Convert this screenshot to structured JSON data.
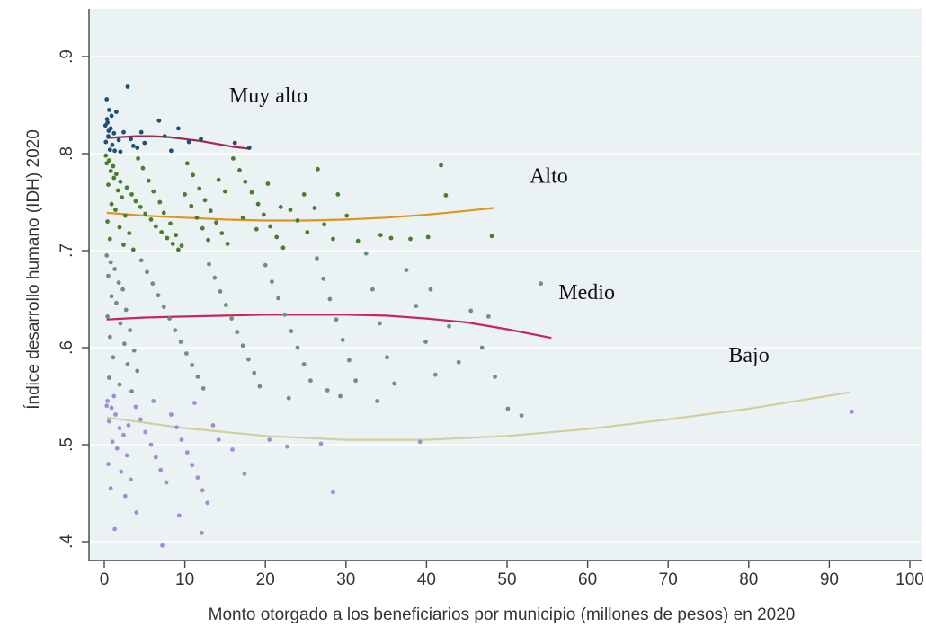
{
  "chart_data": {
    "type": "scatter",
    "title": "",
    "xlabel": "Monto otorgado a los beneficiarios por municipio (millones de pesos) en 2020",
    "ylabel": "Índice desarrollo humano (IDH) 2020",
    "xlim": [
      0,
      100
    ],
    "ylim": [
      0.4,
      0.9
    ],
    "x_ticks": [
      0,
      10,
      20,
      30,
      40,
      50,
      60,
      70,
      80,
      90,
      100
    ],
    "x_tick_labels": [
      "0",
      "10",
      "20",
      "30",
      "40",
      "50",
      "60",
      "70",
      "80",
      "90",
      "100"
    ],
    "y_ticks": [
      0.4,
      0.5,
      0.6,
      0.7,
      0.8,
      0.9
    ],
    "y_tick_labels": [
      ".4",
      ".5",
      ".6",
      ".7",
      ".8",
      ".9"
    ],
    "grid": true,
    "legend": "none",
    "background": "#eaf2f3",
    "groups": [
      {
        "name": "Muy alto",
        "color": "#1f4e79",
        "points": [
          [
            0.3,
            0.856
          ],
          [
            0.6,
            0.845
          ],
          [
            0.9,
            0.839
          ],
          [
            0.4,
            0.832
          ],
          [
            0.8,
            0.826
          ],
          [
            1.2,
            0.821
          ],
          [
            0.5,
            0.818
          ],
          [
            1.5,
            0.843
          ],
          [
            2.9,
            0.869
          ],
          [
            0.2,
            0.812
          ],
          [
            1.0,
            0.809
          ],
          [
            1.8,
            0.814
          ],
          [
            2.4,
            0.822
          ],
          [
            3.3,
            0.815
          ],
          [
            4.1,
            0.806
          ],
          [
            5.0,
            0.811
          ],
          [
            6.8,
            0.834
          ],
          [
            7.5,
            0.818
          ],
          [
            9.2,
            0.826
          ],
          [
            10.5,
            0.812
          ],
          [
            12.0,
            0.815
          ],
          [
            16.2,
            0.811
          ],
          [
            18.0,
            0.806
          ],
          [
            0.7,
            0.804
          ],
          [
            1.3,
            0.803
          ],
          [
            2.0,
            0.802
          ],
          [
            3.6,
            0.808
          ],
          [
            0.35,
            0.8355
          ],
          [
            0.55,
            0.8235
          ],
          [
            0.15,
            0.829
          ],
          [
            4.6,
            0.822
          ],
          [
            8.3,
            0.803
          ]
        ]
      },
      {
        "name": "Alto",
        "color": "#4a7d2c",
        "points": [
          [
            0.3,
            0.79
          ],
          [
            0.8,
            0.782
          ],
          [
            1.2,
            0.775
          ],
          [
            0.5,
            0.768
          ],
          [
            1.7,
            0.762
          ],
          [
            2.2,
            0.755
          ],
          [
            0.9,
            0.748
          ],
          [
            1.4,
            0.742
          ],
          [
            2.6,
            0.736
          ],
          [
            0.4,
            0.73
          ],
          [
            1.9,
            0.724
          ],
          [
            3.1,
            0.718
          ],
          [
            0.7,
            0.712
          ],
          [
            2.4,
            0.706
          ],
          [
            3.6,
            0.701
          ],
          [
            4.2,
            0.795
          ],
          [
            4.8,
            0.785
          ],
          [
            5.5,
            0.772
          ],
          [
            6.1,
            0.761
          ],
          [
            6.9,
            0.75
          ],
          [
            7.4,
            0.739
          ],
          [
            8.2,
            0.728
          ],
          [
            8.9,
            0.716
          ],
          [
            9.6,
            0.705
          ],
          [
            10.3,
            0.79
          ],
          [
            11.0,
            0.778
          ],
          [
            11.8,
            0.764
          ],
          [
            12.5,
            0.752
          ],
          [
            13.2,
            0.741
          ],
          [
            13.9,
            0.729
          ],
          [
            14.6,
            0.718
          ],
          [
            15.3,
            0.707
          ],
          [
            16.0,
            0.795
          ],
          [
            16.8,
            0.783
          ],
          [
            17.5,
            0.771
          ],
          [
            18.3,
            0.76
          ],
          [
            19.1,
            0.748
          ],
          [
            19.8,
            0.737
          ],
          [
            20.6,
            0.725
          ],
          [
            21.4,
            0.714
          ],
          [
            22.2,
            0.703
          ],
          [
            23.1,
            0.742
          ],
          [
            24.0,
            0.731
          ],
          [
            25.2,
            0.719
          ],
          [
            26.5,
            0.784
          ],
          [
            27.3,
            0.727
          ],
          [
            28.4,
            0.712
          ],
          [
            30.1,
            0.736
          ],
          [
            31.5,
            0.71
          ],
          [
            34.3,
            0.716
          ],
          [
            35.6,
            0.713
          ],
          [
            38.0,
            0.712
          ],
          [
            40.2,
            0.714
          ],
          [
            41.8,
            0.788
          ],
          [
            42.4,
            0.757
          ],
          [
            48.1,
            0.715
          ],
          [
            0.2,
            0.798
          ],
          [
            0.6,
            0.793
          ],
          [
            1.1,
            0.787
          ],
          [
            1.5,
            0.779
          ],
          [
            2.0,
            0.771
          ],
          [
            2.8,
            0.765
          ],
          [
            3.4,
            0.758
          ],
          [
            3.9,
            0.751
          ],
          [
            4.5,
            0.745
          ],
          [
            5.1,
            0.738
          ],
          [
            5.8,
            0.732
          ],
          [
            6.4,
            0.725
          ],
          [
            7.1,
            0.719
          ],
          [
            7.8,
            0.713
          ],
          [
            8.5,
            0.707
          ],
          [
            9.2,
            0.701
          ],
          [
            10.0,
            0.758
          ],
          [
            10.8,
            0.746
          ],
          [
            11.5,
            0.734
          ],
          [
            12.2,
            0.723
          ],
          [
            12.9,
            0.711
          ],
          [
            14.2,
            0.773
          ],
          [
            15.0,
            0.761
          ],
          [
            17.2,
            0.734
          ],
          [
            18.9,
            0.722
          ],
          [
            20.3,
            0.769
          ],
          [
            21.9,
            0.745
          ],
          [
            24.8,
            0.758
          ],
          [
            26.1,
            0.744
          ],
          [
            29.0,
            0.758
          ]
        ]
      },
      {
        "name": "Medio",
        "color": "#6f8f82",
        "points": [
          [
            0.3,
            0.695
          ],
          [
            0.8,
            0.688
          ],
          [
            1.3,
            0.681
          ],
          [
            0.5,
            0.674
          ],
          [
            1.8,
            0.667
          ],
          [
            2.3,
            0.66
          ],
          [
            0.9,
            0.653
          ],
          [
            1.5,
            0.646
          ],
          [
            2.7,
            0.639
          ],
          [
            0.4,
            0.632
          ],
          [
            2.0,
            0.625
          ],
          [
            3.2,
            0.618
          ],
          [
            0.7,
            0.611
          ],
          [
            2.5,
            0.604
          ],
          [
            3.7,
            0.597
          ],
          [
            1.1,
            0.59
          ],
          [
            2.9,
            0.583
          ],
          [
            4.1,
            0.576
          ],
          [
            0.6,
            0.569
          ],
          [
            1.9,
            0.562
          ],
          [
            3.4,
            0.555
          ],
          [
            4.6,
            0.69
          ],
          [
            5.3,
            0.678
          ],
          [
            6.0,
            0.666
          ],
          [
            6.7,
            0.654
          ],
          [
            7.4,
            0.642
          ],
          [
            8.1,
            0.63
          ],
          [
            8.8,
            0.618
          ],
          [
            9.5,
            0.606
          ],
          [
            10.2,
            0.594
          ],
          [
            10.9,
            0.582
          ],
          [
            11.6,
            0.57
          ],
          [
            12.3,
            0.558
          ],
          [
            13.0,
            0.686
          ],
          [
            13.7,
            0.672
          ],
          [
            14.4,
            0.658
          ],
          [
            15.1,
            0.644
          ],
          [
            15.8,
            0.63
          ],
          [
            16.5,
            0.616
          ],
          [
            17.2,
            0.602
          ],
          [
            17.9,
            0.588
          ],
          [
            18.6,
            0.574
          ],
          [
            19.3,
            0.56
          ],
          [
            20.0,
            0.685
          ],
          [
            20.8,
            0.668
          ],
          [
            21.6,
            0.651
          ],
          [
            22.4,
            0.634
          ],
          [
            23.2,
            0.617
          ],
          [
            24.0,
            0.6
          ],
          [
            24.8,
            0.583
          ],
          [
            25.6,
            0.566
          ],
          [
            26.4,
            0.692
          ],
          [
            27.2,
            0.671
          ],
          [
            28.0,
            0.65
          ],
          [
            28.8,
            0.629
          ],
          [
            29.6,
            0.608
          ],
          [
            30.4,
            0.587
          ],
          [
            31.2,
            0.566
          ],
          [
            32.5,
            0.697
          ],
          [
            33.3,
            0.66
          ],
          [
            34.2,
            0.625
          ],
          [
            35.1,
            0.59
          ],
          [
            36.0,
            0.563
          ],
          [
            37.5,
            0.68
          ],
          [
            38.7,
            0.643
          ],
          [
            39.9,
            0.606
          ],
          [
            40.5,
            0.66
          ],
          [
            41.1,
            0.572
          ],
          [
            42.8,
            0.622
          ],
          [
            44.0,
            0.585
          ],
          [
            45.5,
            0.638
          ],
          [
            46.9,
            0.6
          ],
          [
            47.7,
            0.632
          ],
          [
            48.5,
            0.57
          ],
          [
            51.8,
            0.53
          ],
          [
            50.1,
            0.537
          ],
          [
            54.2,
            0.666
          ],
          [
            29.3,
            0.55
          ],
          [
            33.9,
            0.545
          ],
          [
            27.7,
            0.556
          ],
          [
            22.9,
            0.548
          ]
        ]
      },
      {
        "name": "Bajo",
        "color": "#9d8fd6",
        "points": [
          [
            0.4,
            0.545
          ],
          [
            0.9,
            0.538
          ],
          [
            1.4,
            0.531
          ],
          [
            0.6,
            0.524
          ],
          [
            1.9,
            0.517
          ],
          [
            2.4,
            0.51
          ],
          [
            1.0,
            0.503
          ],
          [
            1.6,
            0.496
          ],
          [
            2.8,
            0.489
          ],
          [
            0.5,
            0.48
          ],
          [
            2.1,
            0.472
          ],
          [
            3.3,
            0.464
          ],
          [
            0.8,
            0.455
          ],
          [
            2.6,
            0.447
          ],
          [
            3.9,
            0.539
          ],
          [
            4.5,
            0.526
          ],
          [
            5.1,
            0.513
          ],
          [
            5.8,
            0.5
          ],
          [
            6.4,
            0.487
          ],
          [
            7.0,
            0.474
          ],
          [
            7.7,
            0.461
          ],
          [
            8.3,
            0.531
          ],
          [
            9.0,
            0.518
          ],
          [
            9.6,
            0.505
          ],
          [
            10.3,
            0.492
          ],
          [
            10.9,
            0.479
          ],
          [
            11.6,
            0.466
          ],
          [
            12.2,
            0.453
          ],
          [
            12.8,
            0.44
          ],
          [
            13.5,
            0.52
          ],
          [
            14.2,
            0.505
          ],
          [
            15.9,
            0.495
          ],
          [
            17.4,
            0.47
          ],
          [
            20.5,
            0.505
          ],
          [
            22.7,
            0.498
          ],
          [
            26.9,
            0.501
          ],
          [
            28.4,
            0.451
          ],
          [
            39.2,
            0.503
          ],
          [
            1.3,
            0.413
          ],
          [
            7.2,
            0.396
          ],
          [
            12.1,
            0.409
          ],
          [
            9.3,
            0.427
          ],
          [
            4.0,
            0.43
          ],
          [
            6.1,
            0.545
          ],
          [
            11.2,
            0.543
          ],
          [
            1.2,
            0.55
          ],
          [
            0.3,
            0.54
          ],
          [
            3.0,
            0.52
          ],
          [
            92.8,
            0.534
          ]
        ]
      }
    ],
    "trend_lines": [
      {
        "name": "Muy alto",
        "color": "#a3294a",
        "x": [
          0.3,
          2.0,
          4.0,
          6.0,
          8.0,
          10.0,
          12.0,
          14.0,
          16.0,
          18.0
        ],
        "y": [
          0.816,
          0.817,
          0.818,
          0.818,
          0.817,
          0.815,
          0.813,
          0.81,
          0.807,
          0.805
        ]
      },
      {
        "name": "Alto",
        "color": "#e09421",
        "x": [
          0.3,
          5.0,
          10.0,
          15.0,
          20.0,
          25.0,
          30.0,
          35.0,
          40.0,
          45.0,
          48.3
        ],
        "y": [
          0.739,
          0.736,
          0.734,
          0.732,
          0.731,
          0.731,
          0.732,
          0.734,
          0.737,
          0.741,
          0.744
        ]
      },
      {
        "name": "Medio",
        "color": "#c4285a",
        "x": [
          0.3,
          5.0,
          10.0,
          15.0,
          20.0,
          25.0,
          30.0,
          35.0,
          40.0,
          45.0,
          50.0,
          55.5
        ],
        "y": [
          0.629,
          0.631,
          0.632,
          0.633,
          0.634,
          0.634,
          0.634,
          0.633,
          0.63,
          0.626,
          0.619,
          0.61
        ]
      },
      {
        "name": "Bajo",
        "color": "#d1cfa0",
        "x": [
          0.3,
          10.0,
          20.0,
          30.0,
          40.0,
          50.0,
          60.0,
          70.0,
          80.0,
          92.6
        ],
        "y": [
          0.528,
          0.517,
          0.509,
          0.505,
          0.505,
          0.509,
          0.516,
          0.526,
          0.537,
          0.554
        ]
      }
    ],
    "annotations": [
      {
        "text": "Muy alto",
        "x": 15.5,
        "y": 0.853
      },
      {
        "text": "Alto",
        "x": 52.8,
        "y": 0.77
      },
      {
        "text": "Medio",
        "x": 56.4,
        "y": 0.65
      },
      {
        "text": "Bajo",
        "x": 77.5,
        "y": 0.585
      }
    ]
  }
}
